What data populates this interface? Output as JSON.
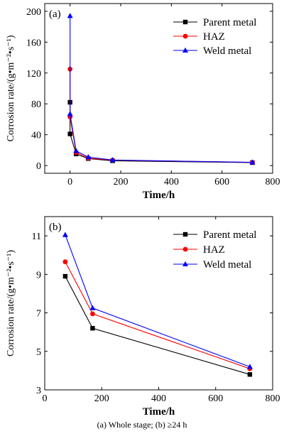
{
  "caption": "(a) Whole stage; (b)  ≥24 h",
  "chart_data": [
    {
      "type": "line",
      "panel_label": "(a)",
      "xlabel": "Time/h",
      "ylabel": "Corrosion rate/(g•m⁻²•s⁻¹)",
      "xlim": [
        -100,
        800
      ],
      "ylim": [
        -10,
        210
      ],
      "xticks": [
        0,
        200,
        400,
        600,
        800
      ],
      "yticks": [
        0,
        40,
        80,
        120,
        160,
        200
      ],
      "legend_position": "top-right",
      "grid": false,
      "series": [
        {
          "name": "Parent metal",
          "color": "#000000",
          "marker": "square",
          "x": [
            0,
            0,
            24,
            72,
            168,
            720
          ],
          "y": [
            82,
            41,
            15,
            9,
            6.2,
            3.8
          ]
        },
        {
          "name": "HAZ",
          "color": "#ff0000",
          "marker": "circle",
          "x": [
            0,
            0,
            24,
            72,
            168,
            720
          ],
          "y": [
            125,
            63,
            17,
            9.6,
            7,
            4.1
          ]
        },
        {
          "name": "Weld metal",
          "color": "#0000ff",
          "marker": "triangle",
          "x": [
            0,
            0,
            24,
            72,
            168,
            720
          ],
          "y": [
            194,
            67,
            19,
            11,
            7.2,
            4.2
          ]
        }
      ]
    },
    {
      "type": "line",
      "panel_label": "(b)",
      "xlabel": "Time/h",
      "ylabel": "Corrosion rate/(g•m⁻²•s⁻¹)",
      "xlim": [
        0,
        800
      ],
      "ylim": [
        3,
        12
      ],
      "xticks": [
        0,
        200,
        400,
        600,
        800
      ],
      "yticks": [
        3,
        5,
        7,
        9,
        11
      ],
      "legend_position": "top-right",
      "grid": false,
      "series": [
        {
          "name": "Parent metal",
          "color": "#000000",
          "marker": "square",
          "x": [
            72,
            168,
            720
          ],
          "y": [
            8.9,
            6.2,
            3.8
          ]
        },
        {
          "name": "HAZ",
          "color": "#ff0000",
          "marker": "circle",
          "x": [
            72,
            168,
            720
          ],
          "y": [
            9.65,
            6.95,
            4.1
          ]
        },
        {
          "name": "Weld metal",
          "color": "#0000ff",
          "marker": "triangle",
          "x": [
            72,
            168,
            720
          ],
          "y": [
            11.05,
            7.25,
            4.2
          ]
        }
      ]
    }
  ]
}
